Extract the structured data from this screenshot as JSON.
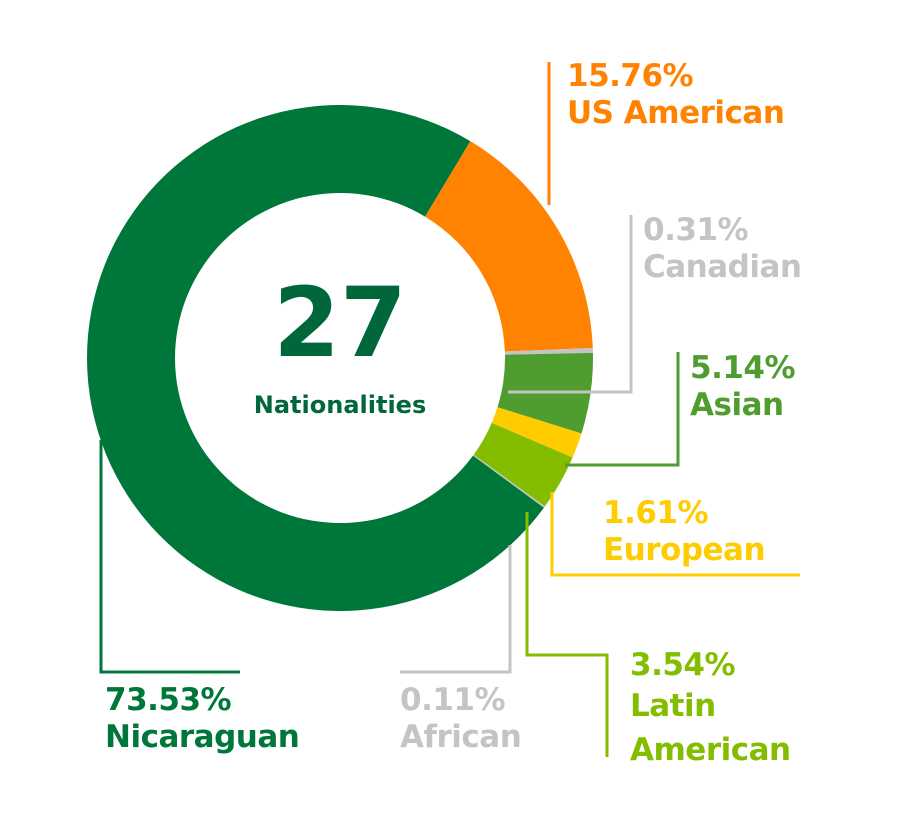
{
  "chart_data": {
    "type": "pie",
    "donut": true,
    "center_value": "27",
    "center_label": "Nationalities",
    "categories": [
      "US American",
      "Canadian",
      "Asian",
      "European",
      "Latin American",
      "African",
      "Nicaraguan"
    ],
    "values": [
      15.76,
      0.31,
      5.14,
      1.61,
      3.54,
      0.11,
      73.53
    ],
    "value_labels": [
      "15.76%",
      "0.31%",
      "5.14%",
      "1.61%",
      "3.54%",
      "0.11%",
      "73.53%"
    ],
    "colors": [
      "#ff8200",
      "#c4c4c4",
      "#4f9c2f",
      "#ffcc00",
      "#84bd00",
      "#c4c4c4",
      "#00773a"
    ]
  }
}
